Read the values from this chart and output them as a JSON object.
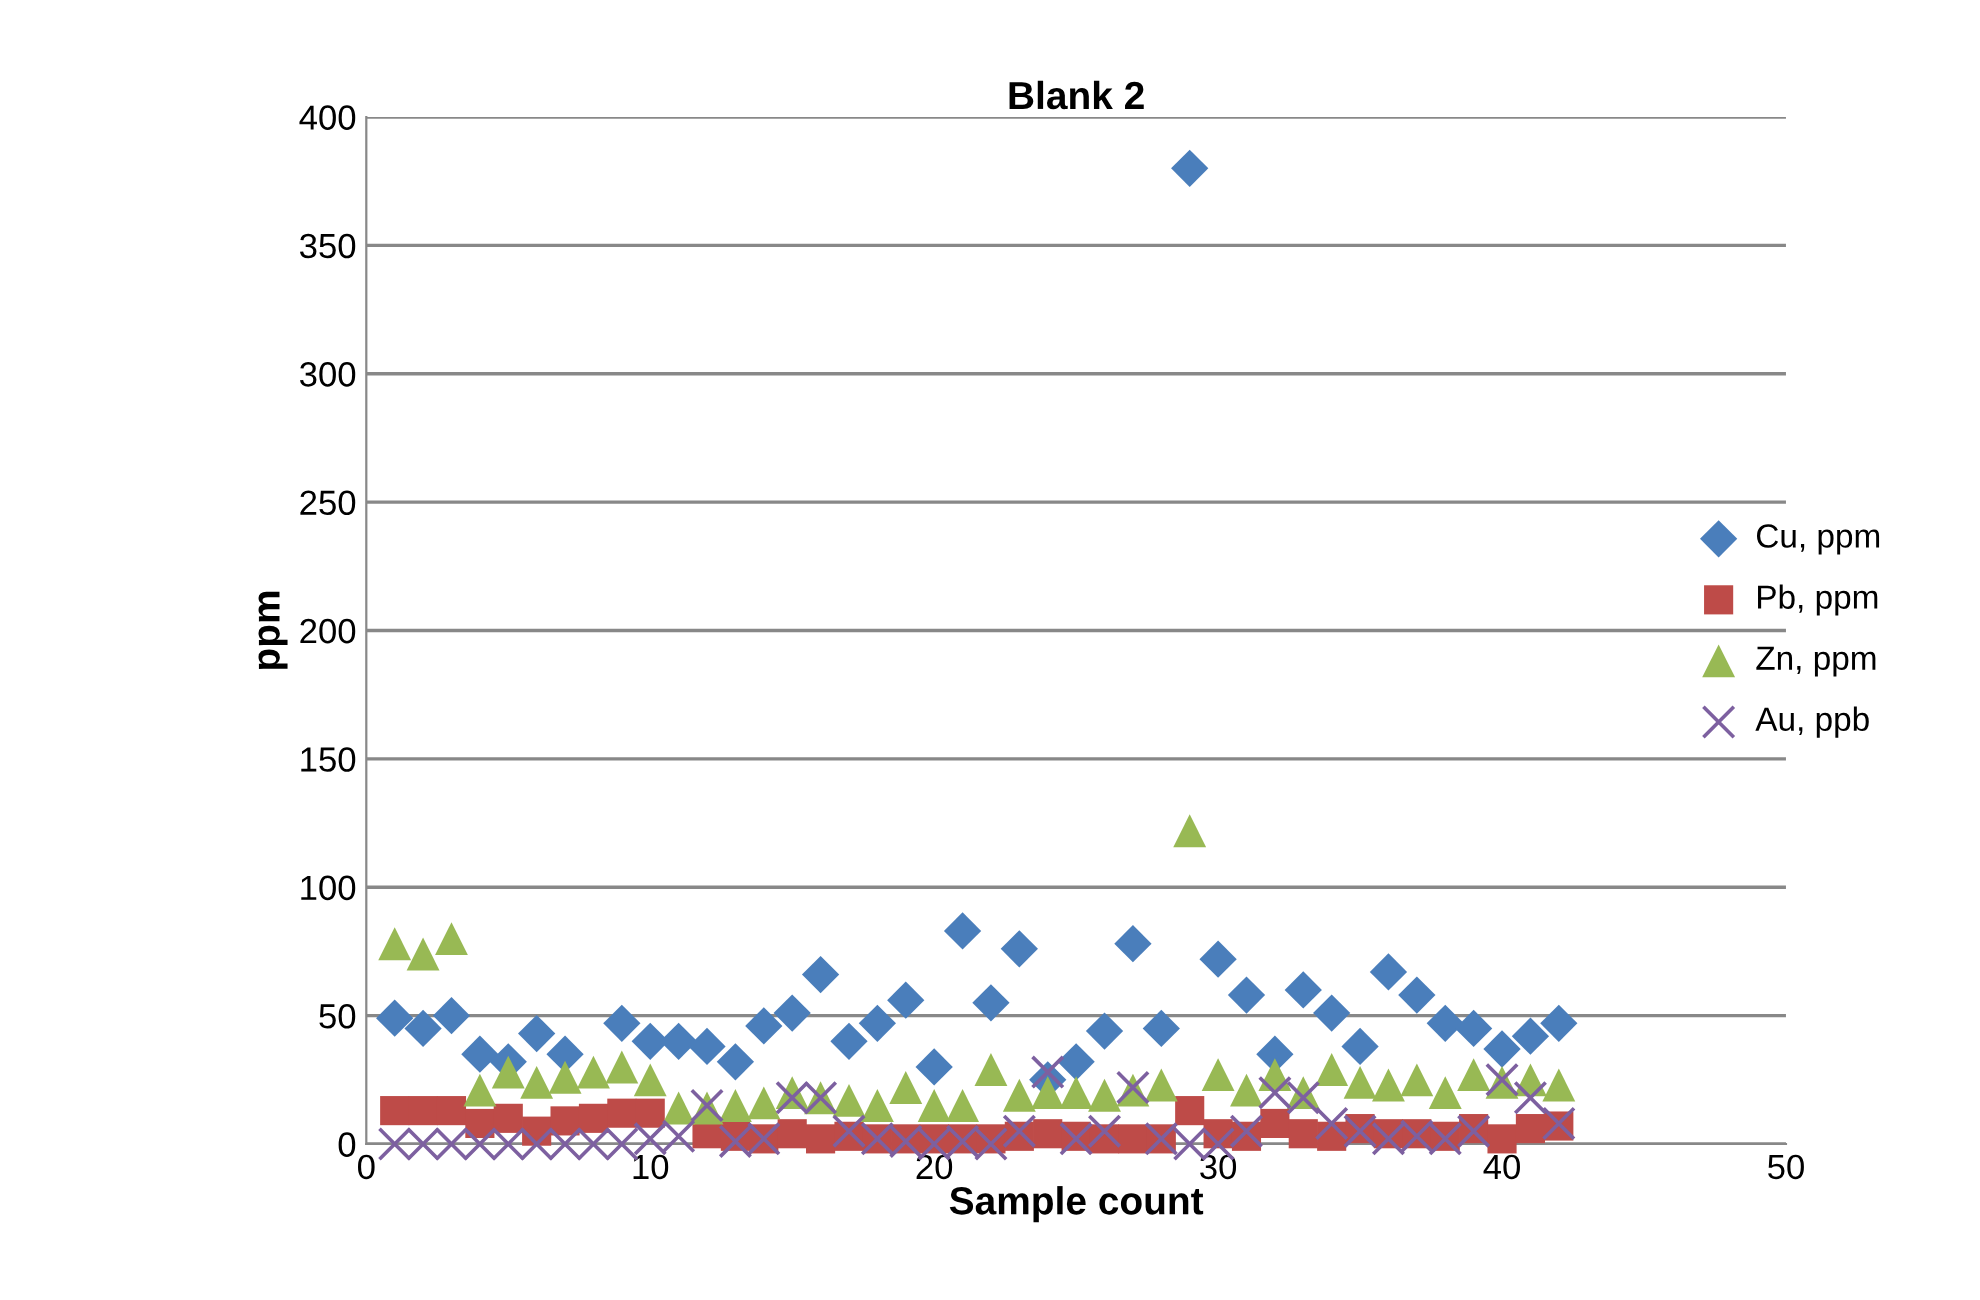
{
  "chart_data": {
    "type": "scatter",
    "title": "Blank 2",
    "xlabel": "Sample count",
    "ylabel": "ppm",
    "x": [
      1,
      2,
      3,
      4,
      5,
      6,
      7,
      8,
      9,
      10,
      11,
      12,
      13,
      14,
      15,
      16,
      17,
      18,
      19,
      20,
      21,
      22,
      23,
      24,
      25,
      26,
      27,
      28,
      29,
      30,
      31,
      32,
      33,
      34,
      35,
      36,
      37,
      38,
      39,
      40,
      41,
      42
    ],
    "series": [
      {
        "name": "Cu, ppm",
        "color": "#4a7ebb",
        "marker": "diamond",
        "values": [
          49,
          45,
          50,
          35,
          32,
          43,
          35,
          null,
          47,
          40,
          40,
          38,
          32,
          46,
          51,
          66,
          40,
          47,
          56,
          30,
          83,
          55,
          76,
          25,
          32,
          44,
          78,
          45,
          380,
          72,
          58,
          35,
          60,
          51,
          38,
          67,
          58,
          47,
          45,
          37,
          42,
          47
        ]
      },
      {
        "name": "Pb, ppm",
        "color": "#be4b48",
        "marker": "square",
        "values": [
          13,
          13,
          13,
          8,
          10,
          5,
          9,
          10,
          12,
          12,
          null,
          4,
          3,
          2,
          4,
          2,
          3,
          2,
          2,
          2,
          2,
          2,
          3,
          4,
          3,
          2,
          2,
          2,
          13,
          4,
          3,
          8,
          4,
          3,
          6,
          4,
          4,
          3,
          6,
          2,
          6,
          7
        ]
      },
      {
        "name": "Zn, ppm",
        "color": "#98b954",
        "marker": "triangle",
        "values": [
          78,
          74,
          80,
          21,
          28,
          24,
          26,
          28,
          30,
          25,
          14,
          14,
          15,
          16,
          20,
          18,
          17,
          15,
          22,
          15,
          15,
          29,
          19,
          20,
          20,
          19,
          21,
          23,
          122,
          27,
          21,
          27,
          20,
          29,
          24,
          23,
          25,
          20,
          27,
          24,
          25,
          23
        ]
      },
      {
        "name": "Au, ppb",
        "color": "#7d60a0",
        "marker": "cross",
        "values": [
          0,
          0,
          0,
          0,
          0,
          0,
          0,
          0,
          0,
          2,
          3,
          15,
          1,
          2,
          18,
          18,
          5,
          2,
          1,
          0,
          1,
          0,
          5,
          28,
          2,
          5,
          22,
          2,
          0,
          0,
          5,
          20,
          18,
          8,
          5,
          2,
          3,
          2,
          5,
          25,
          18,
          8
        ]
      }
    ],
    "xlim": [
      0,
      50
    ],
    "xticks": [
      0,
      10,
      20,
      30,
      40,
      50
    ],
    "ylim": [
      0,
      400
    ],
    "yticks": [
      0,
      50,
      100,
      150,
      200,
      250,
      300,
      350,
      400
    ],
    "grid": "y",
    "legend": "right"
  }
}
